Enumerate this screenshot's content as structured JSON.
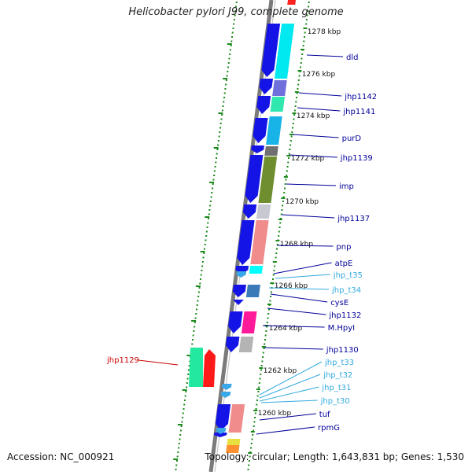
{
  "title": "Helicobacter pylori J99, complete genome",
  "footer": {
    "accession": "Accession: NC_000921",
    "summary": "Topology: circular; Length: 1,643,831 bp; Genes: 1,530"
  },
  "colors": {
    "forward_arrow": "#1414e6",
    "trna": "#3aa8e8",
    "gene_label": "#000099",
    "trna_label": "#33aadd",
    "selected_label": "#cc0000",
    "dot_ticks": "#1a8a1a",
    "backbone": "#7a7a7a"
  },
  "scale_labels": [
    "1278 kbp",
    "1276 kbp",
    "1274 kbp",
    "1272 kbp",
    "1270 kbp",
    "1268 kbp",
    "1266 kbp",
    "1264 kbp",
    "1262 kbp",
    "1260 kbp"
  ],
  "gene_labels": [
    {
      "text": "dld",
      "type": "gene"
    },
    {
      "text": "jhp1142",
      "type": "gene"
    },
    {
      "text": "jhp1141",
      "type": "gene"
    },
    {
      "text": "purD",
      "type": "gene"
    },
    {
      "text": "jhp1139",
      "type": "gene"
    },
    {
      "text": "imp",
      "type": "gene"
    },
    {
      "text": "jhp1137",
      "type": "gene"
    },
    {
      "text": "pnp",
      "type": "gene"
    },
    {
      "text": "atpE",
      "type": "gene"
    },
    {
      "text": "jhp_t35",
      "type": "trna"
    },
    {
      "text": "jhp_t34",
      "type": "trna"
    },
    {
      "text": "cysE",
      "type": "gene"
    },
    {
      "text": "jhp1132",
      "type": "gene"
    },
    {
      "text": "M.HpyI",
      "type": "gene"
    },
    {
      "text": "jhp1130",
      "type": "gene"
    },
    {
      "text": "jhp_t33",
      "type": "trna"
    },
    {
      "text": "jhp_t32",
      "type": "trna"
    },
    {
      "text": "jhp_t31",
      "type": "trna"
    },
    {
      "text": "jhp_t30",
      "type": "trna"
    },
    {
      "text": "tuf",
      "type": "gene"
    },
    {
      "text": "rpmG",
      "type": "gene"
    }
  ],
  "left_label": {
    "text": "jhp1129",
    "type": "selected"
  }
}
